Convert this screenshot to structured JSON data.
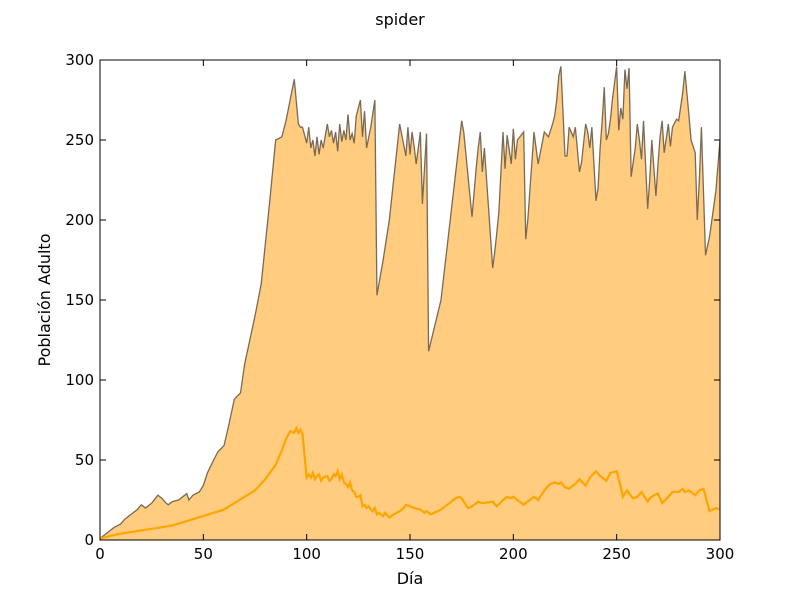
{
  "chart_data": {
    "type": "area",
    "title": "spider",
    "xlabel": "Día",
    "ylabel": "Población Adulto",
    "xlim": [
      0,
      300
    ],
    "ylim": [
      0,
      300
    ],
    "xticks": [
      "0",
      "50",
      "100",
      "150",
      "200",
      "250",
      "300"
    ],
    "yticks": [
      "0",
      "50",
      "100",
      "150",
      "200",
      "250",
      "300"
    ],
    "grid": false,
    "legend": "none",
    "colors": {
      "fill": "#ffcc80",
      "upper_line": "#7a6a55",
      "lower_line": "#ffa500",
      "axes": "#000000"
    },
    "series": [
      {
        "role": "upper",
        "x": [
          0,
          3,
          5,
          7,
          10,
          12,
          15,
          18,
          20,
          22,
          25,
          28,
          30,
          32,
          33,
          35,
          38,
          40,
          42,
          43,
          45,
          48,
          50,
          52,
          55,
          57,
          60,
          62,
          63,
          65,
          68,
          70,
          72,
          75,
          78,
          80,
          82,
          85,
          88,
          90,
          92,
          94,
          96,
          97,
          98,
          100,
          101,
          102,
          103,
          104,
          105,
          106,
          107,
          108,
          110,
          111,
          112,
          113,
          114,
          115,
          116,
          117,
          118,
          119,
          120,
          121,
          122,
          123,
          124,
          126,
          127,
          128,
          129,
          131,
          133,
          134,
          137,
          140,
          145,
          148,
          149,
          150,
          151,
          152,
          153,
          155,
          156,
          158,
          159,
          165,
          175,
          176,
          180,
          182,
          183,
          184,
          185,
          186,
          190,
          191,
          192,
          193,
          195,
          196,
          197,
          199,
          200,
          201,
          202,
          205,
          206,
          207,
          210,
          212,
          215,
          217,
          218,
          219,
          220,
          221,
          222,
          223,
          225,
          226,
          227,
          229,
          230,
          232,
          233,
          235,
          236,
          237,
          238,
          240,
          241,
          242,
          243,
          244,
          245,
          246,
          247,
          248,
          250,
          251,
          252,
          253,
          254,
          255,
          256,
          257,
          259,
          260,
          261,
          262,
          263,
          265,
          266,
          267,
          269,
          270,
          271,
          272,
          273,
          275,
          276,
          277,
          279,
          280,
          282,
          283,
          285,
          286,
          288,
          289,
          290,
          291,
          293,
          295,
          298,
          300
        ],
        "values": [
          1,
          4,
          6,
          8,
          10,
          13,
          16,
          19,
          22,
          20,
          23,
          28,
          26,
          23,
          22,
          24,
          25,
          27,
          29,
          25,
          28,
          30,
          34,
          42,
          50,
          55,
          59,
          70,
          76,
          88,
          92,
          110,
          122,
          140,
          160,
          185,
          210,
          250,
          252,
          262,
          275,
          288,
          260,
          258,
          258,
          248,
          258,
          245,
          250,
          240,
          252,
          241,
          250,
          245,
          260,
          252,
          256,
          248,
          255,
          243,
          260,
          249,
          256,
          250,
          266,
          250,
          254,
          248,
          265,
          275,
          252,
          268,
          245,
          258,
          275,
          153,
          175,
          200,
          260,
          240,
          258,
          241,
          255,
          246,
          235,
          255,
          210,
          254,
          118,
          150,
          262,
          255,
          202,
          232,
          245,
          255,
          230,
          245,
          170,
          180,
          192,
          205,
          255,
          232,
          253,
          235,
          257,
          238,
          250,
          255,
          188,
          200,
          255,
          235,
          255,
          252,
          256,
          260,
          265,
          275,
          290,
          296,
          240,
          240,
          258,
          252,
          258,
          230,
          236,
          260,
          255,
          245,
          258,
          212,
          220,
          245,
          262,
          283,
          250,
          254,
          263,
          276,
          296,
          256,
          270,
          263,
          294,
          282,
          295,
          227,
          245,
          260,
          250,
          238,
          262,
          207,
          225,
          250,
          215,
          235,
          252,
          262,
          242,
          260,
          246,
          258,
          263,
          262,
          280,
          293,
          265,
          250,
          242,
          200,
          225,
          258,
          178,
          190,
          218,
          250
        ]
      },
      {
        "role": "lower",
        "x": [
          0,
          10,
          20,
          30,
          35,
          40,
          45,
          50,
          55,
          60,
          65,
          70,
          75,
          80,
          85,
          88,
          90,
          92,
          94,
          95,
          96,
          97,
          98,
          100,
          101,
          102,
          103,
          104,
          105,
          106,
          107,
          108,
          110,
          111,
          112,
          113,
          114,
          115,
          116,
          117,
          118,
          119,
          120,
          121,
          122,
          123,
          124,
          125,
          126,
          127,
          128,
          129,
          130,
          131,
          132,
          133,
          134,
          135,
          136,
          137,
          138,
          140,
          142,
          145,
          147,
          148,
          150,
          152,
          155,
          157,
          158,
          160,
          165,
          170,
          172,
          174,
          175,
          178,
          180,
          182,
          183,
          185,
          190,
          192,
          195,
          197,
          199,
          200,
          202,
          205,
          207,
          210,
          212,
          215,
          217,
          218,
          220,
          222,
          223,
          225,
          227,
          230,
          232,
          235,
          237,
          240,
          242,
          245,
          247,
          250,
          252,
          253,
          255,
          256,
          258,
          260,
          262,
          263,
          265,
          266,
          268,
          270,
          272,
          275,
          277,
          280,
          282,
          283,
          285,
          288,
          290,
          292,
          295,
          298,
          300
        ],
        "values": [
          1,
          4,
          6,
          8,
          9,
          11,
          13,
          15,
          17,
          19,
          23,
          27,
          31,
          38,
          47,
          56,
          63,
          68,
          67,
          70,
          67,
          69,
          66,
          39,
          41,
          39,
          42,
          38,
          40,
          41,
          37,
          39,
          40,
          37,
          38,
          41,
          40,
          43,
          38,
          41,
          36,
          35,
          33,
          36,
          31,
          30,
          27,
          27,
          28,
          21,
          22,
          20,
          21,
          19,
          18,
          20,
          16,
          17,
          16,
          15,
          17,
          14,
          16,
          18,
          20,
          22,
          21,
          20,
          19,
          17,
          18,
          16,
          19,
          24,
          26,
          27,
          26,
          20,
          21,
          23,
          24,
          23,
          24,
          21,
          25,
          27,
          26,
          27,
          25,
          22,
          24,
          27,
          25,
          31,
          34,
          35,
          36,
          35,
          36,
          33,
          32,
          35,
          38,
          34,
          39,
          43,
          40,
          37,
          42,
          43,
          33,
          27,
          31,
          29,
          26,
          27,
          30,
          28,
          24,
          26,
          28,
          29,
          23,
          27,
          30,
          30,
          32,
          30,
          31,
          28,
          31,
          32,
          18,
          20,
          19
        ]
      }
    ]
  }
}
